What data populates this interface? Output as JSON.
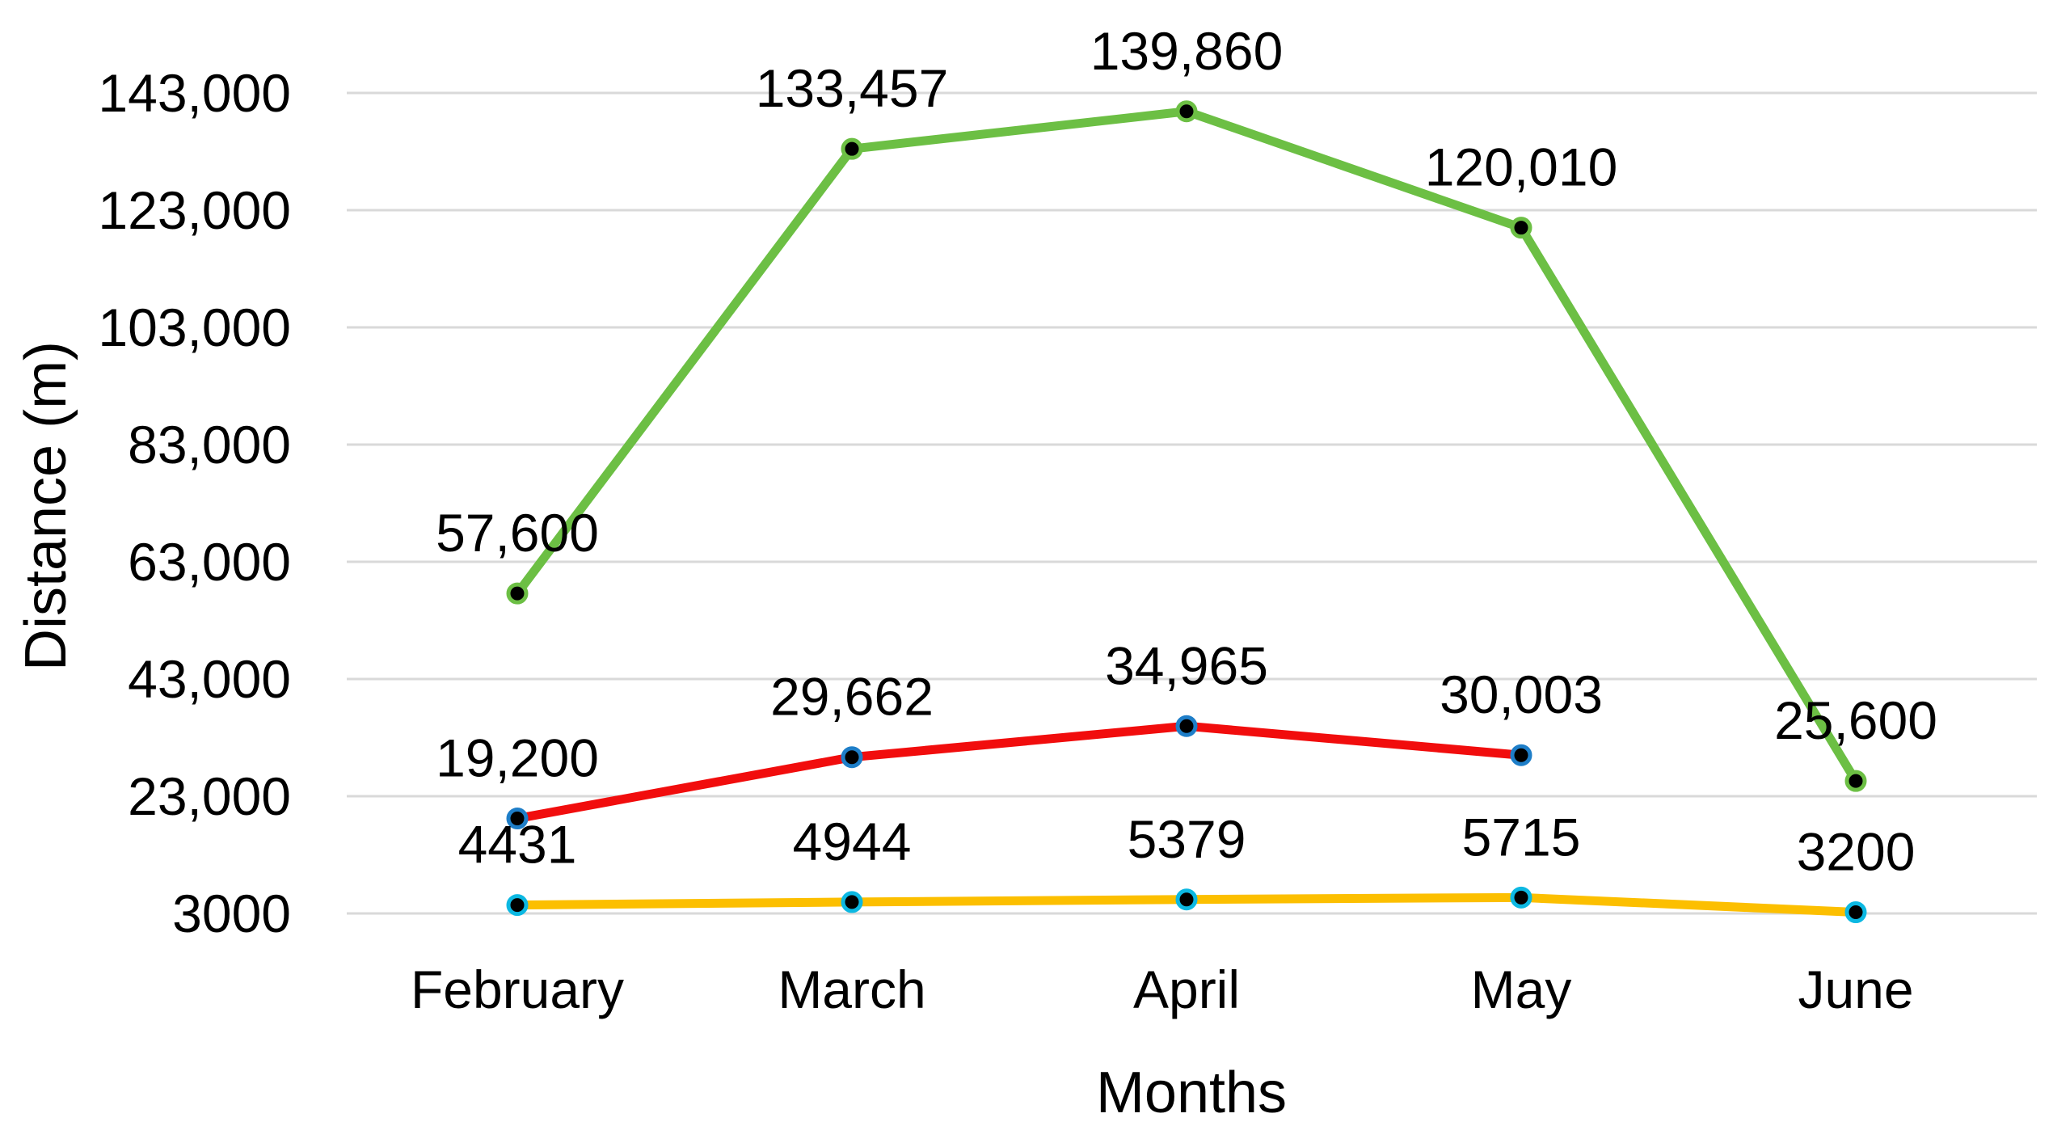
{
  "chart_data": {
    "type": "line",
    "title": "",
    "xlabel": "Months",
    "ylabel": "Distance (m)",
    "categories": [
      "February",
      "March",
      "April",
      "May",
      "June"
    ],
    "series": [
      {
        "name": "green",
        "color": "#6cbf44",
        "marker_ring_color": "#6cbf44",
        "values": [
          57600,
          133457,
          139860,
          120010,
          25600
        ],
        "point_labels": [
          "57,600",
          "133,457",
          "139,860",
          "120,010",
          "25,600"
        ]
      },
      {
        "name": "red",
        "color": "#f10d0d",
        "marker_ring_color": "#1e7ec8",
        "values": [
          19200,
          29662,
          34965,
          30003
        ],
        "point_labels": [
          "19,200",
          "29,662",
          "34,965",
          "30,003"
        ]
      },
      {
        "name": "yellow",
        "color": "#fcbf00",
        "marker_ring_color": "#0cb8e2",
        "values": [
          4431,
          4944,
          5379,
          5715,
          3200
        ],
        "point_labels": [
          "4431",
          "4944",
          "5379",
          "5715",
          "3200"
        ]
      }
    ],
    "y_ticks": [
      {
        "label": "143,000",
        "value": 143000
      },
      {
        "label": "123,000",
        "value": 123000
      },
      {
        "label": "103,000",
        "value": 103000
      },
      {
        "label": "83,000",
        "value": 83000
      },
      {
        "label": "63,000",
        "value": 63000
      },
      {
        "label": "43,000",
        "value": 43000
      },
      {
        "label": "23,000",
        "value": 23000
      },
      {
        "label": "3000",
        "value": 3000
      }
    ],
    "ylim": [
      3000,
      143000
    ],
    "grid": true,
    "legend": "none",
    "marker_core_color": "#000000",
    "gridline_color": "#d9d9d9",
    "text_color": "#000000"
  }
}
